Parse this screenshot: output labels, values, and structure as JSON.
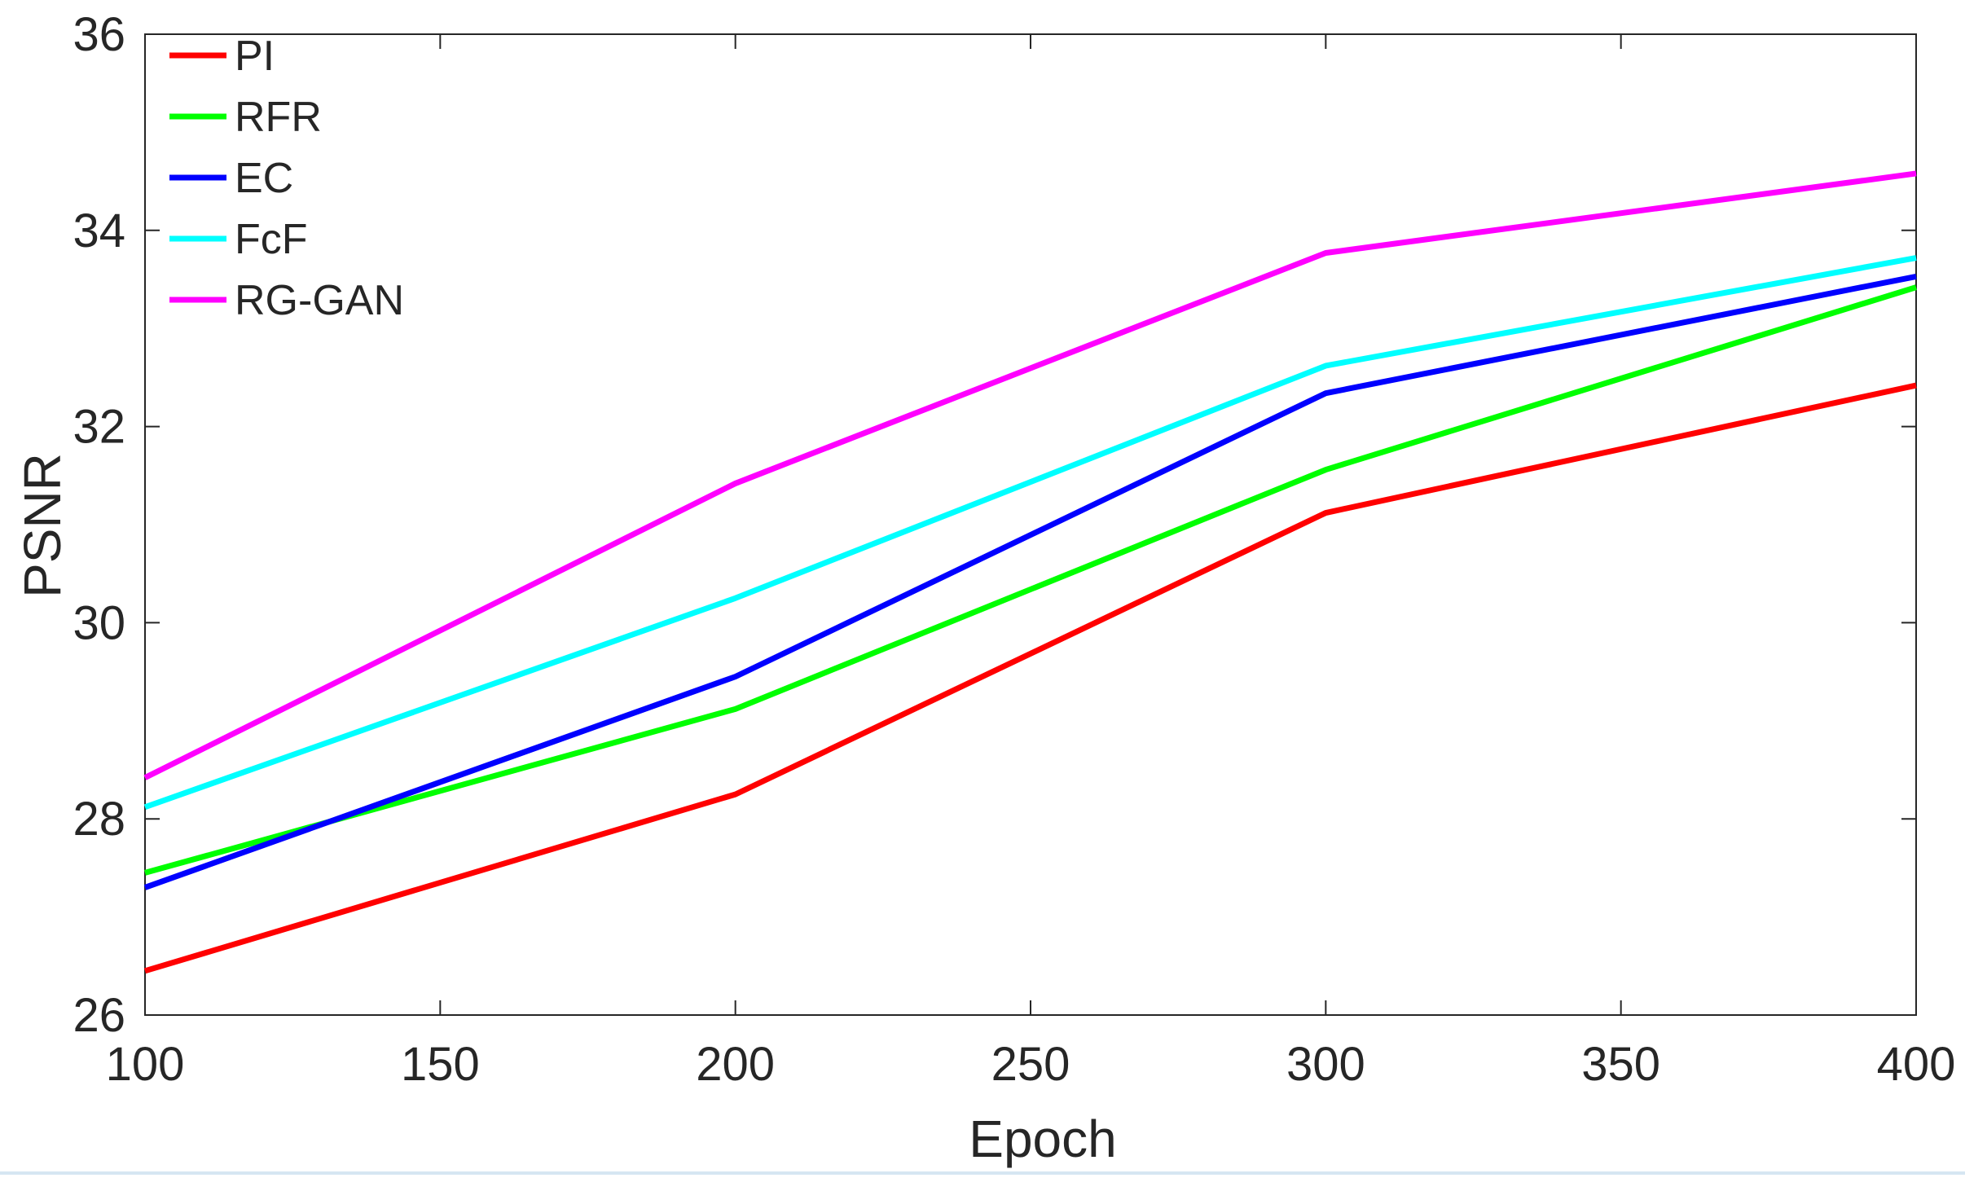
{
  "chart_data": {
    "type": "line",
    "title": "",
    "xlabel": "Epoch",
    "ylabel": "PSNR",
    "xlim": [
      100,
      400
    ],
    "ylim": [
      26,
      36
    ],
    "xticks": [
      100,
      150,
      200,
      250,
      300,
      350,
      400
    ],
    "yticks": [
      26,
      28,
      30,
      32,
      34,
      36
    ],
    "grid": false,
    "legend_position": "top-left",
    "x": [
      100,
      200,
      300,
      400
    ],
    "series": [
      {
        "name": "PI",
        "color": "#ff0000",
        "values": [
          26.45,
          28.25,
          31.12,
          32.42
        ]
      },
      {
        "name": "RFR",
        "color": "#00ff00",
        "values": [
          27.45,
          29.12,
          31.56,
          33.42
        ]
      },
      {
        "name": "EC",
        "color": "#0000ff",
        "values": [
          27.3,
          29.45,
          32.34,
          33.53
        ]
      },
      {
        "name": "FcF",
        "color": "#00ffff",
        "values": [
          28.12,
          30.25,
          32.62,
          33.72
        ]
      },
      {
        "name": "RG-GAN",
        "color": "#ff00ff",
        "values": [
          28.42,
          31.42,
          33.77,
          34.58
        ]
      }
    ]
  }
}
